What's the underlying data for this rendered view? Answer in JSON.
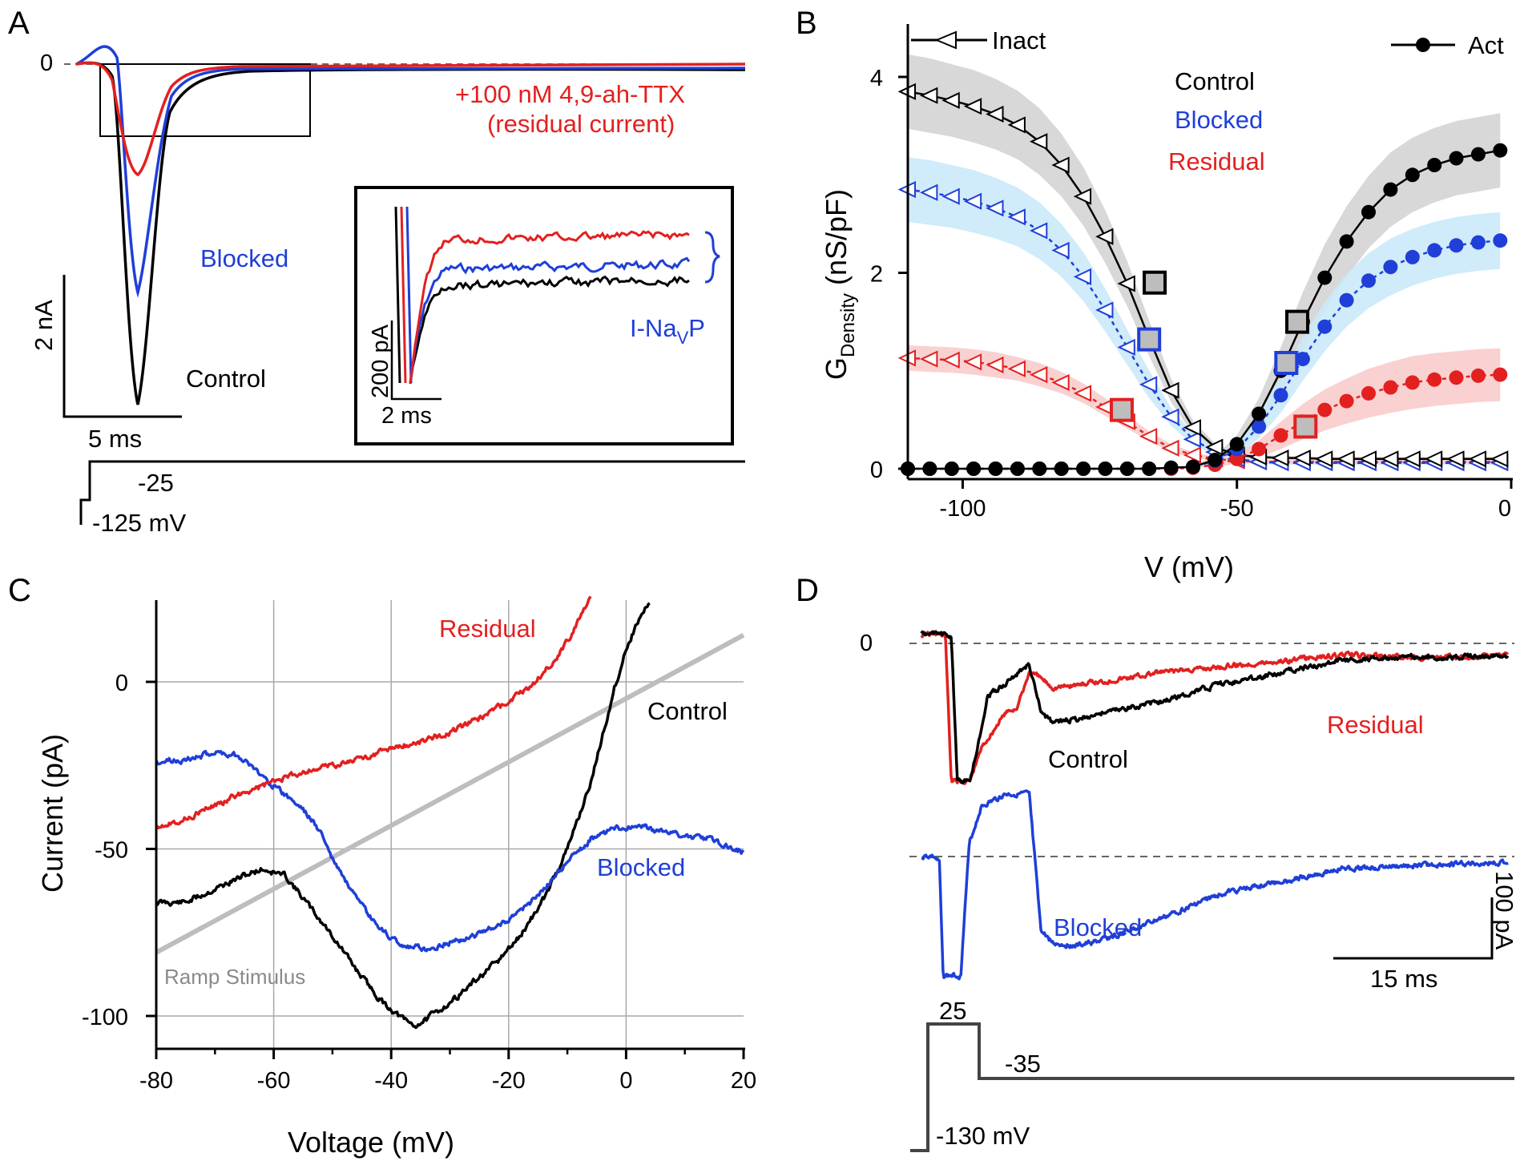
{
  "figure": {
    "panels": {
      "A": {
        "letter": "A",
        "zero_label": "0",
        "drug_label_line1": "+100 nM 4,9-ah-TTX",
        "drug_label_line2": "(residual current)",
        "blocked_label": "Blocked",
        "control_label": "Control",
        "scale_y_label": "2 nA",
        "scale_x_label": "5 ms",
        "step_high_label": "-25",
        "step_low_label": "-125 mV",
        "inset": {
          "scale_y_label": "200 pA",
          "scale_x_label": "2 ms",
          "persistent_label": "I-Na",
          "persistent_sub": "V",
          "persistent_tail": "P"
        }
      },
      "B": {
        "letter": "B",
        "inact_label": "Inact",
        "act_label": "Act",
        "control_label": "Control",
        "blocked_label": "Blocked",
        "residual_label": "Residual"
      },
      "C": {
        "letter": "C",
        "residual_label": "Residual",
        "control_label": "Control",
        "blocked_label": "Blocked",
        "ramp_label": "Ramp Stimulus"
      },
      "D": {
        "letter": "D",
        "zero_label": "0",
        "control_label": "Control",
        "residual_label": "Residual",
        "blocked_label": "Blocked",
        "scale_y_label": "100 pA",
        "scale_x_label": "15 ms",
        "step_high_label": "25",
        "step_mid_label": "-35",
        "step_low_label": "-130 mV"
      }
    }
  },
  "chart_data": [
    {
      "id": "B",
      "type": "line",
      "title": "",
      "ylabel": "G",
      "ylabel_sub": "Density",
      "ylabel_tail": " (nS/pF)",
      "xlabel": "V (mV)",
      "xlim": [
        -110,
        0
      ],
      "ylim": [
        -0.05,
        4.5
      ],
      "x_ticks": [
        -100,
        -50,
        0
      ],
      "y_ticks": [
        0,
        2,
        4
      ],
      "colors": {
        "control": "#000000",
        "blocked": "#1f3fd8",
        "residual": "#e32020"
      },
      "band_colors": {
        "control": "#d4d4d4",
        "blocked": "#cbe9fa",
        "residual": "#f8cccc"
      },
      "activation": {
        "x": [
          -110,
          -106,
          -102,
          -98,
          -94,
          -90,
          -86,
          -82,
          -78,
          -74,
          -70,
          -66,
          -62,
          -58,
          -54,
          -50,
          -46,
          -42,
          -38,
          -34,
          -30,
          -26,
          -22,
          -18,
          -14,
          -10,
          -6,
          -2
        ],
        "control": [
          0,
          0,
          0,
          0,
          0,
          0,
          0,
          0,
          0,
          0,
          0,
          0,
          0.01,
          0.02,
          0.09,
          0.25,
          0.56,
          1.0,
          1.5,
          1.95,
          2.32,
          2.62,
          2.85,
          3.0,
          3.1,
          3.17,
          3.21,
          3.25
        ],
        "blocked": [
          0,
          0,
          0,
          0,
          0,
          0,
          0,
          0,
          0,
          0,
          0,
          0,
          0.01,
          0.02,
          0.08,
          0.2,
          0.43,
          0.75,
          1.12,
          1.45,
          1.72,
          1.92,
          2.06,
          2.16,
          2.23,
          2.28,
          2.31,
          2.33
        ],
        "residual": [
          0,
          0,
          0,
          0,
          0,
          0,
          0,
          0,
          0,
          0,
          0,
          0,
          0,
          0.01,
          0.04,
          0.1,
          0.2,
          0.34,
          0.48,
          0.6,
          0.69,
          0.77,
          0.83,
          0.88,
          0.91,
          0.93,
          0.95,
          0.96
        ],
        "control_band": [
          0,
          0,
          0,
          0,
          0,
          0,
          0,
          0,
          0,
          0,
          0,
          0,
          0,
          0.01,
          0.04,
          0.09,
          0.16,
          0.24,
          0.3,
          0.34,
          0.36,
          0.37,
          0.38,
          0.38,
          0.38,
          0.38,
          0.38,
          0.38
        ],
        "blocked_band": [
          0,
          0,
          0,
          0,
          0,
          0,
          0,
          0,
          0,
          0,
          0,
          0,
          0,
          0.01,
          0.03,
          0.07,
          0.12,
          0.18,
          0.22,
          0.25,
          0.27,
          0.28,
          0.29,
          0.29,
          0.29,
          0.29,
          0.29,
          0.29
        ],
        "residual_band": [
          0,
          0,
          0,
          0,
          0,
          0,
          0,
          0,
          0,
          0,
          0,
          0,
          0,
          0,
          0.02,
          0.05,
          0.09,
          0.14,
          0.18,
          0.21,
          0.23,
          0.25,
          0.26,
          0.27,
          0.27,
          0.27,
          0.27,
          0.27
        ]
      },
      "inactivation": {
        "x": [
          -110,
          -106,
          -102,
          -98,
          -94,
          -90,
          -86,
          -82,
          -78,
          -74,
          -70,
          -66,
          -62,
          -58,
          -54,
          -50,
          -46,
          -42,
          -38,
          -34,
          -30,
          -26,
          -22,
          -18,
          -14,
          -10,
          -6,
          -2
        ],
        "control": [
          3.85,
          3.81,
          3.76,
          3.7,
          3.62,
          3.51,
          3.34,
          3.1,
          2.78,
          2.37,
          1.89,
          1.33,
          0.8,
          0.42,
          0.22,
          0.14,
          0.12,
          0.11,
          0.11,
          0.1,
          0.1,
          0.1,
          0.1,
          0.1,
          0.1,
          0.1,
          0.1,
          0.1
        ],
        "blocked": [
          2.85,
          2.82,
          2.78,
          2.73,
          2.66,
          2.57,
          2.43,
          2.23,
          1.96,
          1.62,
          1.24,
          0.86,
          0.53,
          0.3,
          0.17,
          0.1,
          0.07,
          0.06,
          0.06,
          0.06,
          0.06,
          0.06,
          0.06,
          0.06,
          0.06,
          0.06,
          0.06,
          0.06
        ],
        "residual": [
          1.13,
          1.12,
          1.11,
          1.09,
          1.06,
          1.02,
          0.96,
          0.88,
          0.77,
          0.63,
          0.48,
          0.33,
          0.21,
          0.14,
          0.1,
          0.08,
          0.07,
          0.07,
          0.07,
          0.07,
          0.07,
          0.07,
          0.07,
          0.07,
          0.07,
          0.07,
          0.07,
          0.07
        ],
        "control_band": [
          0.38,
          0.38,
          0.37,
          0.37,
          0.36,
          0.35,
          0.34,
          0.32,
          0.3,
          0.27,
          0.23,
          0.18,
          0.12,
          0.07,
          0.04,
          0.02,
          0.02,
          0.02,
          0.02,
          0.02,
          0.02,
          0.02,
          0.02,
          0.02,
          0.02,
          0.02,
          0.02,
          0.02
        ],
        "blocked_band": [
          0.33,
          0.33,
          0.32,
          0.32,
          0.31,
          0.3,
          0.29,
          0.27,
          0.25,
          0.22,
          0.18,
          0.14,
          0.09,
          0.06,
          0.03,
          0.02,
          0.02,
          0.02,
          0.02,
          0.02,
          0.02,
          0.02,
          0.02,
          0.02,
          0.02,
          0.02,
          0.02,
          0.02
        ],
        "residual_band": [
          0.13,
          0.13,
          0.13,
          0.13,
          0.13,
          0.12,
          0.12,
          0.11,
          0.1,
          0.09,
          0.07,
          0.05,
          0.04,
          0.03,
          0.02,
          0.02,
          0.02,
          0.02,
          0.02,
          0.02,
          0.02,
          0.02,
          0.02,
          0.02,
          0.02,
          0.02,
          0.02,
          0.02
        ]
      },
      "v_half_markers": {
        "inactivation": {
          "control": [
            -65,
            1.9
          ],
          "blocked": [
            -66,
            1.32
          ],
          "residual": [
            -71,
            0.6
          ]
        },
        "activation": {
          "control": [
            -39,
            1.5
          ],
          "blocked": [
            -41,
            1.08
          ],
          "residual": [
            -37.5,
            0.43
          ]
        }
      }
    },
    {
      "id": "C",
      "type": "line",
      "title": "",
      "xlabel": "Voltage (mV)",
      "ylabel": "Current (pA)",
      "xlim": [
        -80,
        20
      ],
      "ylim": [
        -108,
        25
      ],
      "x_ticks": [
        -80,
        -60,
        -40,
        -20,
        0,
        20
      ],
      "y_ticks": [
        -100,
        -50,
        0
      ],
      "grid": true,
      "colors": {
        "control": "#000000",
        "blocked": "#1f3fd8",
        "residual": "#e32020",
        "ramp": "#bdbdbd"
      },
      "series": [
        {
          "name": "Control",
          "x": [
            -80,
            -75,
            -70,
            -65,
            -62,
            -58,
            -54,
            -50,
            -46,
            -42,
            -38,
            -36,
            -34,
            -30,
            -26,
            -22,
            -18,
            -14,
            -10,
            -6,
            -4,
            -2,
            0,
            2,
            4
          ],
          "y": [
            -66,
            -66,
            -62,
            -58,
            -56,
            -58,
            -67,
            -76,
            -86,
            -95,
            -101,
            -103,
            -101,
            -96,
            -90,
            -84,
            -76,
            -65,
            -50,
            -30,
            -16,
            -2,
            10,
            18,
            24
          ]
        },
        {
          "name": "Blocked",
          "x": [
            -80,
            -74,
            -70,
            -66,
            -62,
            -58,
            -55,
            -52,
            -50,
            -46,
            -42,
            -38,
            -34,
            -30,
            -26,
            -22,
            -18,
            -14,
            -10,
            -6,
            -2,
            2,
            6,
            10,
            14,
            18,
            20
          ],
          "y": [
            -24,
            -23,
            -21,
            -22,
            -28,
            -34,
            -38,
            -45,
            -53,
            -65,
            -74,
            -79,
            -80,
            -78,
            -76,
            -73,
            -69,
            -62,
            -54,
            -47,
            -44,
            -43,
            -45,
            -46,
            -47,
            -50,
            -51
          ]
        },
        {
          "name": "Residual",
          "x": [
            -80,
            -75,
            -70,
            -65,
            -60,
            -55,
            -50,
            -45,
            -40,
            -35,
            -30,
            -25,
            -20,
            -16,
            -14,
            -12,
            -10,
            -8,
            -6
          ],
          "y": [
            -43,
            -41,
            -37,
            -33,
            -30,
            -27,
            -25,
            -23,
            -20,
            -18,
            -15,
            -11,
            -6,
            -1,
            3,
            7,
            12,
            19,
            25
          ]
        },
        {
          "name": "Ramp Stimulus",
          "x": [
            -80,
            20
          ],
          "y": [
            -81,
            14
          ]
        }
      ]
    },
    {
      "id": "D",
      "type": "line",
      "title": "",
      "xlabel": "",
      "ylabel": "",
      "xlim": [
        -2,
        99
      ],
      "colors": {
        "control": "#000000",
        "blocked": "#1f3fd8",
        "residual": "#e32020"
      },
      "series": [
        {
          "name": "Control",
          "x": [
            0,
            3,
            5,
            6,
            7,
            8,
            10,
            11,
            14,
            18,
            20,
            22,
            26,
            30,
            40,
            50,
            60,
            70,
            80,
            90,
            98
          ],
          "y": [
            8,
            8,
            7,
            -120,
            -120,
            -120,
            -75,
            -45,
            -35,
            -18,
            -60,
            -68,
            -65,
            -60,
            -50,
            -35,
            -25,
            -15,
            -12,
            -12,
            -10
          ]
        },
        {
          "name": "Residual",
          "x": [
            0,
            3,
            4,
            5,
            6,
            7,
            8,
            10,
            14,
            16,
            18,
            20,
            22,
            30,
            40,
            50,
            60,
            70,
            80,
            90,
            98
          ],
          "y": [
            8,
            8,
            8,
            -120,
            -120,
            -120,
            -120,
            -90,
            -60,
            -55,
            -25,
            -30,
            -38,
            -33,
            -25,
            -20,
            -15,
            -10,
            -12,
            -12,
            -10
          ]
        },
        {
          "name": "Blocked",
          "x": [
            0,
            2,
            3,
            4,
            5,
            6,
            7,
            8,
            10,
            12,
            14,
            18,
            20,
            22,
            26,
            30,
            40,
            50,
            60,
            70,
            80,
            90,
            98
          ],
          "y": [
            0,
            0,
            -5,
            -150,
            -150,
            -150,
            -60,
            10,
            40,
            45,
            50,
            50,
            -60,
            -70,
            -72,
            -68,
            -50,
            -30,
            -20,
            -10,
            -8,
            -6,
            -5
          ]
        }
      ]
    }
  ]
}
